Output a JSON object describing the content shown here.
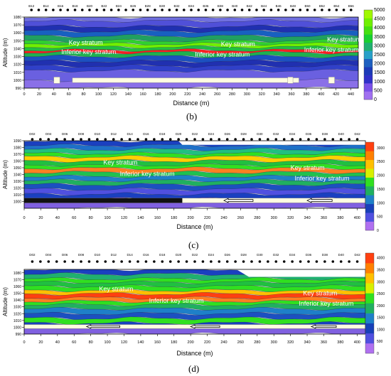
{
  "chart_data": [
    {
      "type": "heatmap",
      "caption": "(b)",
      "xlabel": "Distance (m)",
      "ylabel": "Altitude (m)",
      "xlim": [
        0,
        450
      ],
      "ylim": [
        990,
        1080
      ],
      "x_ticks": [
        0,
        20,
        40,
        60,
        80,
        100,
        120,
        140,
        160,
        180,
        200,
        220,
        240,
        260,
        280,
        300,
        320,
        340,
        360,
        380,
        400,
        420,
        440
      ],
      "y_ticks": [
        990,
        1000,
        1010,
        1020,
        1030,
        1040,
        1050,
        1060,
        1070,
        1080
      ],
      "top_labels": [
        "B12",
        "B14",
        "B16",
        "B18",
        "B20",
        "B22",
        "B24",
        "B26",
        "B28",
        "B30",
        "B32",
        "B34",
        "B36",
        "B38",
        "B40",
        "B42",
        "B44",
        "B46",
        "B48",
        "B50",
        "B52",
        "B54",
        "B56"
      ],
      "colorbar": {
        "ticks": [
          0,
          500,
          1000,
          1500,
          2000,
          2500,
          3000,
          3500,
          4000,
          4500,
          5000
        ],
        "max": 5000,
        "colors": [
          "#a070f0",
          "#7a50e8",
          "#3030c8",
          "#1c3ab8",
          "#1e60c0",
          "#28a0c8",
          "#20b070",
          "#18d030",
          "#44e010",
          "#70f000",
          "#a0f800"
        ]
      },
      "annotations": [
        {
          "text": "Key stratum",
          "x": 60,
          "y": 1045
        },
        {
          "text": "Key stratum",
          "x": 265,
          "y": 1043
        },
        {
          "text": "Key stratum",
          "x": 408,
          "y": 1049
        },
        {
          "text": "Inferior key stratum",
          "x": 50,
          "y": 1033
        },
        {
          "text": "Inferior key stratum",
          "x": 230,
          "y": 1030
        },
        {
          "text": "Inferior key stratum",
          "x": 377,
          "y": 1036
        }
      ]
    },
    {
      "type": "heatmap",
      "caption": "(c)",
      "xlabel": "Distance (m)",
      "ylabel": "Altitude (m)",
      "xlim": [
        0,
        410
      ],
      "ylim": [
        990,
        1090
      ],
      "x_ticks": [
        0,
        20,
        40,
        60,
        80,
        100,
        120,
        140,
        160,
        180,
        200,
        220,
        240,
        260,
        280,
        300,
        320,
        340,
        360,
        380,
        400
      ],
      "y_ticks": [
        1000,
        1010,
        1020,
        1030,
        1040,
        1050,
        1060,
        1070,
        1080,
        1090
      ],
      "top_labels": [
        "D02",
        "D04",
        "D06",
        "D08",
        "D10",
        "D12",
        "D14",
        "D16",
        "D18",
        "D20",
        "D22",
        "D24",
        "D26",
        "D28",
        "D30",
        "D32",
        "D34",
        "D36",
        "D38",
        "D40",
        "D42"
      ],
      "colorbar": {
        "ticks": [
          0,
          500,
          1000,
          1500,
          2000,
          2500,
          3000
        ],
        "max": 3200,
        "colors": [
          "#b070f0",
          "#5050e0",
          "#1840b8",
          "#1e80c8",
          "#20b060",
          "#30e020",
          "#d8f000",
          "#ffc000",
          "#ff8000",
          "#ff4010"
        ]
      },
      "annotations": [
        {
          "text": "Key stratum",
          "x": 95,
          "y": 1055
        },
        {
          "text": "Key stratum",
          "x": 320,
          "y": 1047
        },
        {
          "text": "Inferior key stratum",
          "x": 115,
          "y": 1038
        },
        {
          "text": "Inferior key stratum",
          "x": 325,
          "y": 1031
        }
      ]
    },
    {
      "type": "heatmap",
      "caption": "(d)",
      "xlabel": "Distance (m)",
      "ylabel": "Altitude (m)",
      "xlim": [
        0,
        410
      ],
      "ylim": [
        990,
        1085
      ],
      "x_ticks": [
        0,
        20,
        40,
        60,
        80,
        100,
        120,
        140,
        160,
        180,
        200,
        220,
        240,
        260,
        280,
        300,
        320,
        340,
        360,
        380,
        400
      ],
      "y_ticks": [
        990,
        1000,
        1010,
        1020,
        1030,
        1040,
        1050,
        1060,
        1070,
        1080
      ],
      "top_labels": [
        "D02",
        "D04",
        "D06",
        "D08",
        "D10",
        "D12",
        "D14",
        "D16",
        "D18",
        "D20",
        "D22",
        "D24",
        "D26",
        "D28",
        "D30",
        "D32",
        "D34",
        "D36",
        "D38",
        "D40",
        "D42"
      ],
      "colorbar": {
        "ticks": [
          0,
          500,
          1000,
          1500,
          2000,
          2500,
          3000,
          3500,
          4000
        ],
        "max": 4200,
        "colors": [
          "#b070f0",
          "#5050e0",
          "#1840b8",
          "#1e80c8",
          "#20b060",
          "#30e020",
          "#d8f000",
          "#ffc000",
          "#ff8000",
          "#ff4010"
        ]
      },
      "annotations": [
        {
          "text": "Key stratum",
          "x": 90,
          "y": 1053
        },
        {
          "text": "Key stratum",
          "x": 335,
          "y": 1047
        },
        {
          "text": "Inferior key stratum",
          "x": 150,
          "y": 1036
        },
        {
          "text": "Inferior key stratum",
          "x": 330,
          "y": 1032
        }
      ]
    }
  ]
}
